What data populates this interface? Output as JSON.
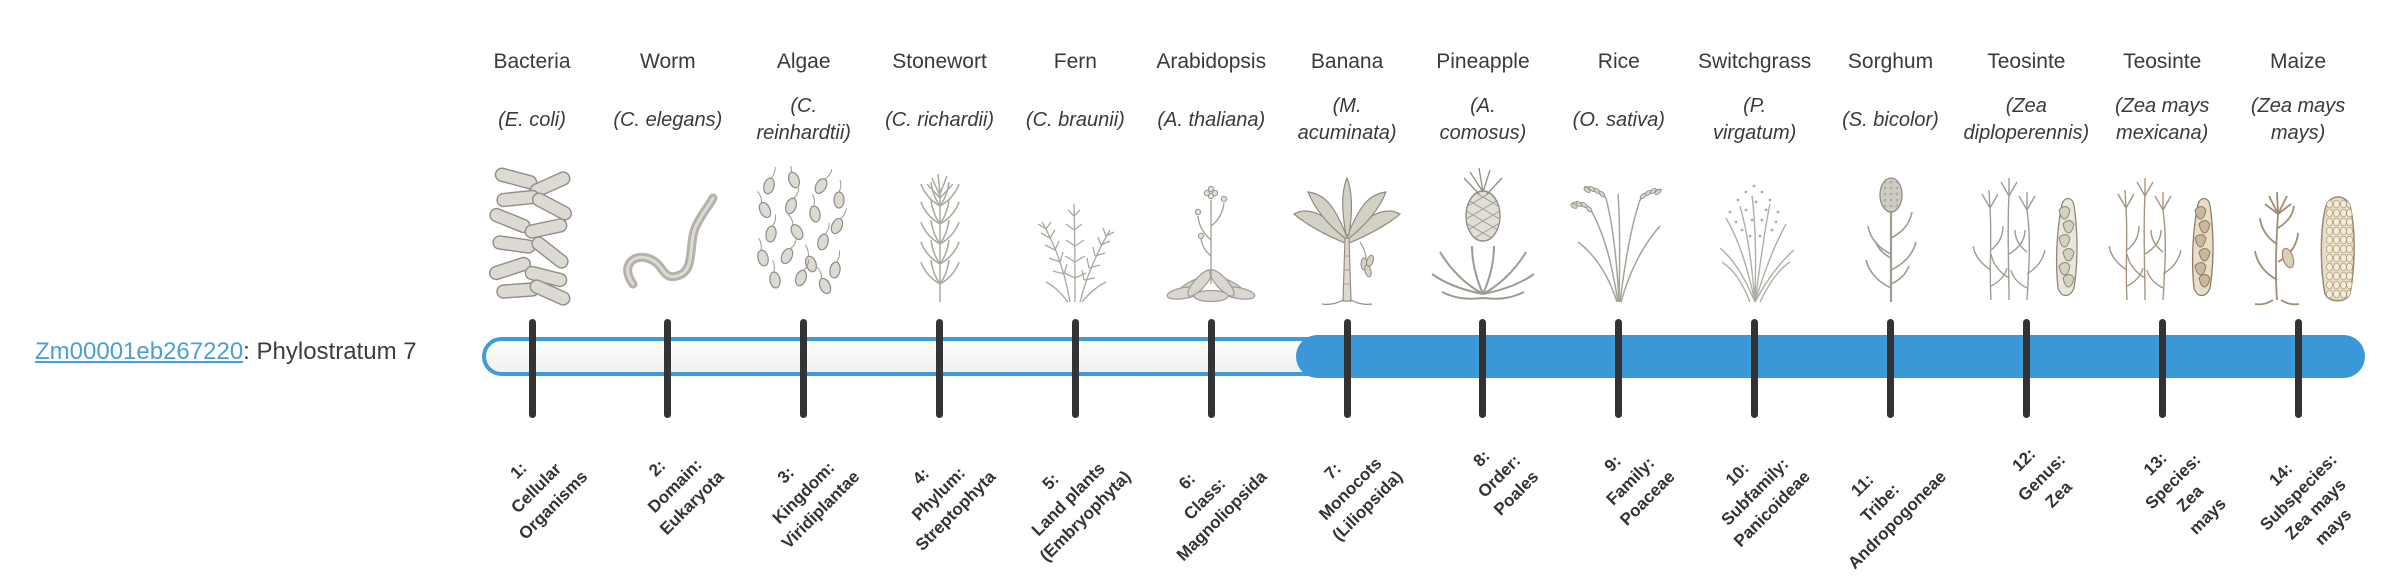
{
  "gene_label": {
    "link_text": "Zm00001eb267220",
    "suffix": ": Phylostratum 7",
    "phylostratum": 7
  },
  "timeline": {
    "num_strata": 14,
    "filled_from_stratum": 7
  },
  "colors": {
    "bar_blue": "#3a98d8",
    "track_border": "#3f9bd9",
    "tick": "#333333",
    "link": "#4a9fd8",
    "heading_text": "#3a3a3a",
    "label_text": "#333333"
  },
  "organisms": [
    {
      "common": "Bacteria",
      "scientific": "(E. coli)",
      "icon": "bacteria-icon",
      "stratum": 1,
      "stratum_label": "1:\nCellular\nOrganisms"
    },
    {
      "common": "Worm",
      "scientific": "(C. elegans)",
      "icon": "worm-icon",
      "stratum": 2,
      "stratum_label": "2:\nDomain:\nEukaryota"
    },
    {
      "common": "Algae",
      "scientific": "(C.\nreinhardtii)",
      "icon": "algae-icon",
      "stratum": 3,
      "stratum_label": "3:\nKingdom:\nViridiplantae"
    },
    {
      "common": "Stonewort",
      "scientific": "(C. richardii)",
      "icon": "stonewort-icon",
      "stratum": 4,
      "stratum_label": "4:\nPhylum:\nStreptophyta"
    },
    {
      "common": "Fern",
      "scientific": "(C. braunii)",
      "icon": "fern-icon",
      "stratum": 5,
      "stratum_label": "5:\nLand plants\n(Embryophyta)"
    },
    {
      "common": "Arabidopsis",
      "scientific": "(A. thaliana)",
      "icon": "arabidopsis-icon",
      "stratum": 6,
      "stratum_label": "6:\nClass:\nMagnoliopsida"
    },
    {
      "common": "Banana",
      "scientific": "(M.\nacuminata)",
      "icon": "banana-icon",
      "stratum": 7,
      "stratum_label": "7:\nMonocots\n(Liliopsida)"
    },
    {
      "common": "Pineapple",
      "scientific": "(A.\ncomosus)",
      "icon": "pineapple-icon",
      "stratum": 8,
      "stratum_label": "8:\nOrder:\nPoales"
    },
    {
      "common": "Rice",
      "scientific": "(O. sativa)",
      "icon": "rice-icon",
      "stratum": 9,
      "stratum_label": "9:\nFamily:\nPoaceae"
    },
    {
      "common": "Switchgrass",
      "scientific": "(P.\nvirgatum)",
      "icon": "switchgrass-icon",
      "stratum": 10,
      "stratum_label": "10:\nSubfamily:\nPanicoideae"
    },
    {
      "common": "Sorghum",
      "scientific": "(S. bicolor)",
      "icon": "sorghum-icon",
      "stratum": 11,
      "stratum_label": "11:\nTribe:\nAndropogoneae"
    },
    {
      "common": "Teosinte",
      "scientific": "(Zea\ndiploperennis)",
      "icon": "teosinte-diploperennis-icon",
      "stratum": 12,
      "stratum_label": "12:\nGenus:\nZea"
    },
    {
      "common": "Teosinte",
      "scientific": "(Zea mays\nmexicana)",
      "icon": "teosinte-mexicana-icon",
      "stratum": 13,
      "stratum_label": "13:\nSpecies:\nZea\nmays"
    },
    {
      "common": "Maize",
      "scientific": "(Zea mays\nmays)",
      "icon": "maize-icon",
      "stratum": 14,
      "stratum_label": "14:\nSubspecies:\nZea mays\nmays"
    }
  ]
}
